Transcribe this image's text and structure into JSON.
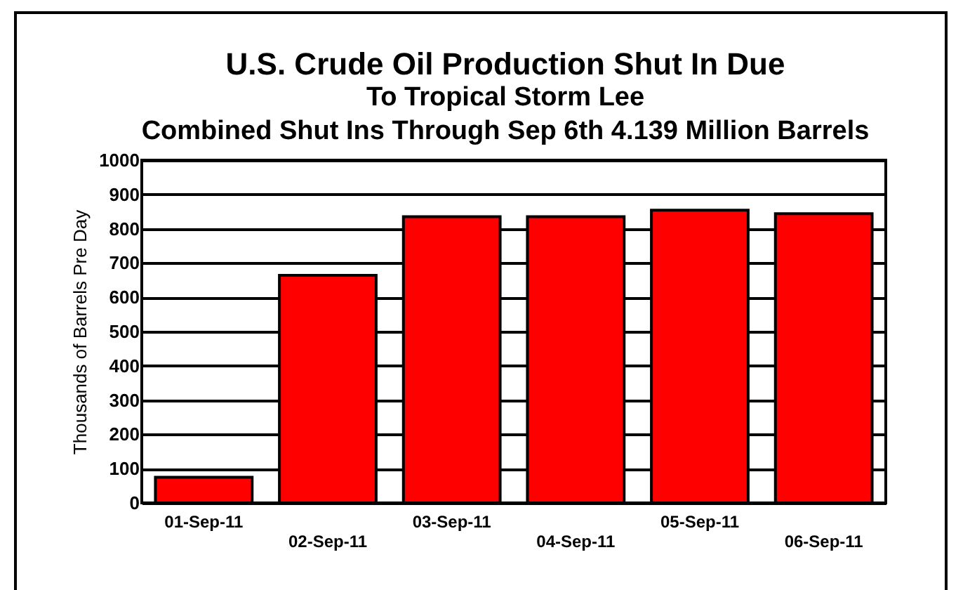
{
  "chart_data": {
    "type": "bar",
    "title": "U.S. Crude Oil Production Shut In Due",
    "subtitle": "To Tropical Storm Lee",
    "annotations": [
      "Combined Shut Ins Through Sep 6th 4.139 Million Barrels"
    ],
    "ylabel": "Thousands of Barrels Pre Day",
    "categories": [
      "01-Sep-11",
      "02-Sep-11",
      "03-Sep-11",
      "04-Sep-11",
      "05-Sep-11",
      "06-Sep-11"
    ],
    "values": [
      75,
      664,
      835,
      835,
      854,
      844
    ],
    "color": "#ff0000",
    "ylim": [
      0,
      1000
    ],
    "yticks": [
      0,
      100,
      200,
      300,
      400,
      500,
      600,
      700,
      800,
      900,
      1000
    ],
    "grid": "y"
  }
}
